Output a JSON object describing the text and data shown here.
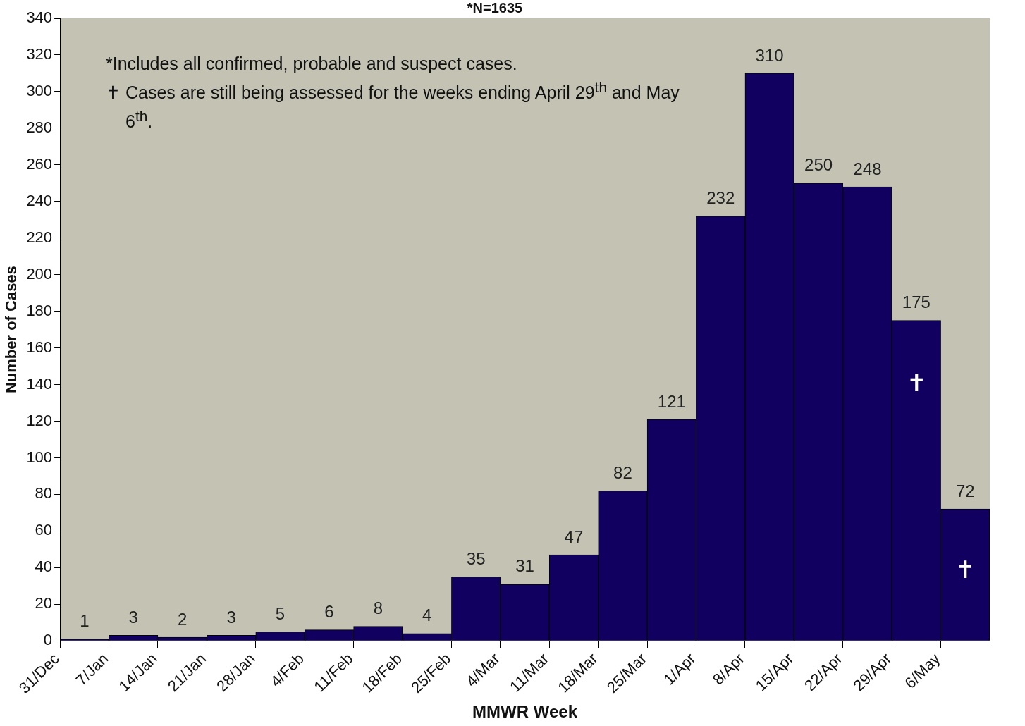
{
  "chart_data": {
    "type": "bar",
    "title": "*N=1635",
    "xlabel": "MMWR Week",
    "ylabel": "Number of Cases",
    "categories": [
      "31/Dec",
      "7/Jan",
      "14/Jan",
      "21/Jan",
      "28/Jan",
      "4/Feb",
      "11/Feb",
      "18/Feb",
      "25/Feb",
      "4/Mar",
      "11/Mar",
      "18/Mar",
      "25/Mar",
      "1/Apr",
      "8/Apr",
      "15/Apr",
      "22/Apr",
      "29/Apr",
      "6/May"
    ],
    "values": [
      1,
      3,
      2,
      3,
      5,
      6,
      8,
      4,
      35,
      31,
      47,
      82,
      121,
      232,
      310,
      250,
      248,
      175,
      72
    ],
    "color": "#110060",
    "data_labels": true,
    "grid": false,
    "legend": false,
    "ylim": [
      0,
      340
    ],
    "yticks": [
      0,
      20,
      40,
      60,
      80,
      100,
      120,
      140,
      160,
      180,
      200,
      220,
      240,
      260,
      280,
      300,
      320,
      340
    ],
    "annotations": [
      "*Includes all confirmed, probable and suspect cases.",
      "✝ Cases are still being assessed for the weeks ending April 29$^{th}$ and May 6$^{th}$.",
      {
        "text": "✝",
        "x": "29/Apr",
        "y": 140
      },
      {
        "text": "✝",
        "x": "6/May",
        "y": 38
      }
    ]
  }
}
